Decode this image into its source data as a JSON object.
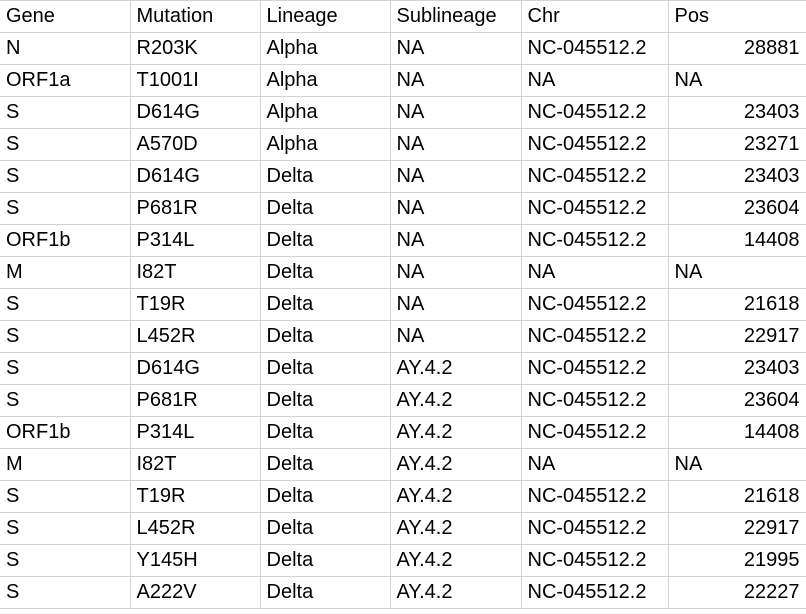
{
  "table": {
    "columns": [
      "Gene",
      "Mutation",
      "Lineage",
      "Sublineage",
      "Chr",
      "Pos"
    ],
    "rows": [
      [
        "N",
        "R203K",
        "Alpha",
        "NA",
        "NC-045512.2",
        "28881"
      ],
      [
        "ORF1a",
        "T1001I",
        "Alpha",
        "NA",
        "NA",
        "NA"
      ],
      [
        "S",
        "D614G",
        "Alpha",
        "NA",
        "NC-045512.2",
        "23403"
      ],
      [
        "S",
        "A570D",
        "Alpha",
        "NA",
        "NC-045512.2",
        "23271"
      ],
      [
        "S",
        "D614G",
        "Delta",
        "NA",
        "NC-045512.2",
        "23403"
      ],
      [
        "S",
        "P681R",
        "Delta",
        "NA",
        "NC-045512.2",
        "23604"
      ],
      [
        "ORF1b",
        "P314L",
        "Delta",
        "NA",
        "NC-045512.2",
        "14408"
      ],
      [
        "M",
        "I82T",
        "Delta",
        "NA",
        "NA",
        "NA"
      ],
      [
        "S",
        "T19R",
        "Delta",
        "NA",
        "NC-045512.2",
        "21618"
      ],
      [
        "S",
        "L452R",
        "Delta",
        "NA",
        "NC-045512.2",
        "22917"
      ],
      [
        "S",
        "D614G",
        "Delta",
        "AY.4.2",
        "NC-045512.2",
        "23403"
      ],
      [
        "S",
        "P681R",
        "Delta",
        "AY.4.2",
        "NC-045512.2",
        "23604"
      ],
      [
        "ORF1b",
        "P314L",
        "Delta",
        "AY.4.2",
        "NC-045512.2",
        "14408"
      ],
      [
        "M",
        "I82T",
        "Delta",
        "AY.4.2",
        "NA",
        "NA"
      ],
      [
        "S",
        "T19R",
        "Delta",
        "AY.4.2",
        "NC-045512.2",
        "21618"
      ],
      [
        "S",
        "L452R",
        "Delta",
        "AY.4.2",
        "NC-045512.2",
        "22917"
      ],
      [
        "S",
        "Y145H",
        "Delta",
        "AY.4.2",
        "NC-045512.2",
        "21995"
      ],
      [
        "S",
        "A222V",
        "Delta",
        "AY.4.2",
        "NC-045512.2",
        "22227"
      ]
    ]
  }
}
